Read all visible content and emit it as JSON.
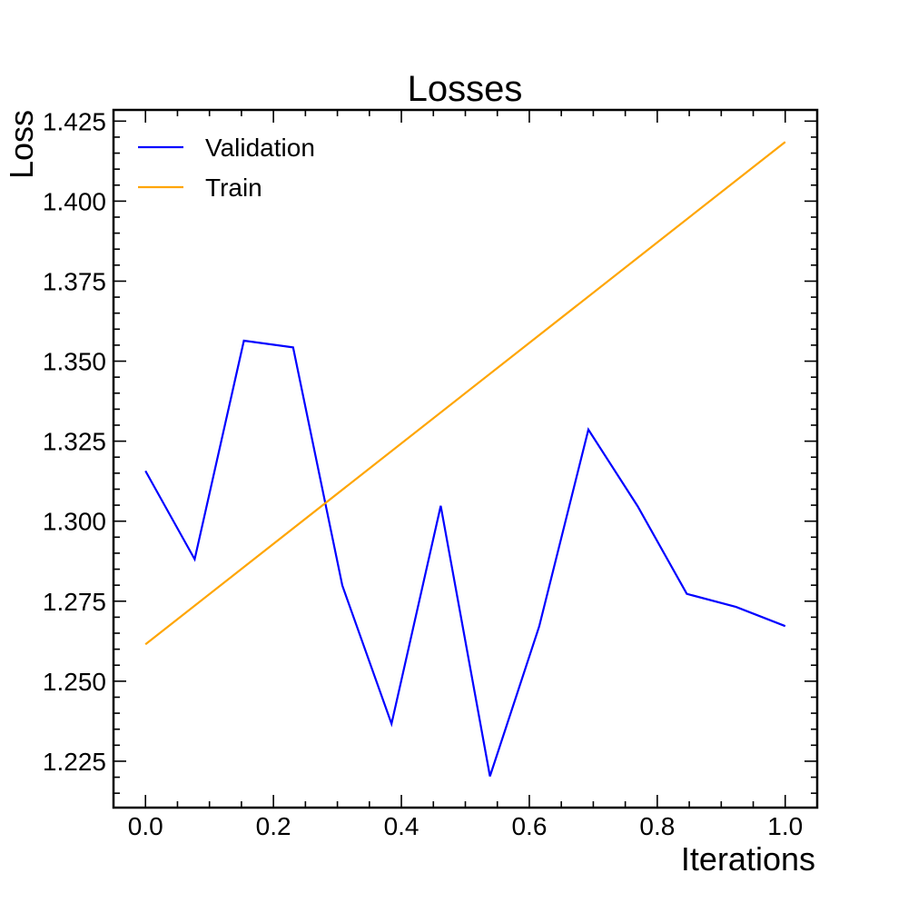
{
  "chart_data": {
    "type": "line",
    "title": "Losses",
    "xlabel": "Iterations",
    "ylabel": "Loss",
    "xlim": [
      -0.05,
      1.05
    ],
    "ylim": [
      1.2105,
      1.4285
    ],
    "x_ticks": [
      0.0,
      0.2,
      0.4,
      0.6,
      0.8,
      1.0
    ],
    "x_tick_labels": [
      "0.0",
      "0.2",
      "0.4",
      "0.6",
      "0.8",
      "1.0"
    ],
    "y_ticks": [
      1.225,
      1.25,
      1.275,
      1.3,
      1.325,
      1.35,
      1.375,
      1.4,
      1.425
    ],
    "y_tick_labels": [
      "1.225",
      "1.250",
      "1.275",
      "1.300",
      "1.325",
      "1.350",
      "1.375",
      "1.400",
      "1.425"
    ],
    "grid": false,
    "legend_position": "top-left",
    "series": [
      {
        "name": "Validation",
        "color": "#0000ff",
        "x": [
          0.0,
          0.0769,
          0.1538,
          0.2308,
          0.3077,
          0.3846,
          0.4615,
          0.5385,
          0.6154,
          0.6923,
          0.7692,
          0.8462,
          0.9231,
          1.0
        ],
        "values": [
          1.3157,
          1.2881,
          1.3564,
          1.3543,
          1.2799,
          1.2367,
          1.3048,
          1.2203,
          1.2671,
          1.3286,
          1.3047,
          1.2773,
          1.2732,
          1.2672
        ]
      },
      {
        "name": "Train",
        "color": "#ffa500",
        "x": [
          0.0,
          1.0
        ],
        "values": [
          1.2615,
          1.4185
        ]
      }
    ]
  }
}
